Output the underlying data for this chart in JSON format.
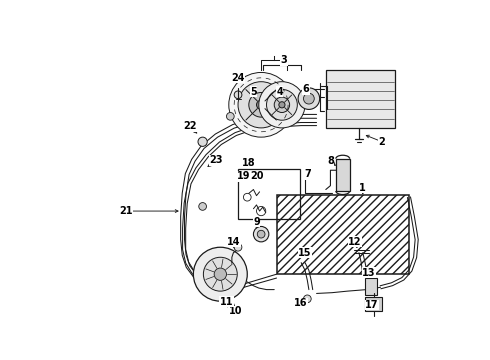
{
  "bg_color": "#ffffff",
  "line_color": "#1a1a1a",
  "label_color": "#000000",
  "figsize": [
    4.9,
    3.6
  ],
  "dpi": 100,
  "label_fs": 7.0
}
